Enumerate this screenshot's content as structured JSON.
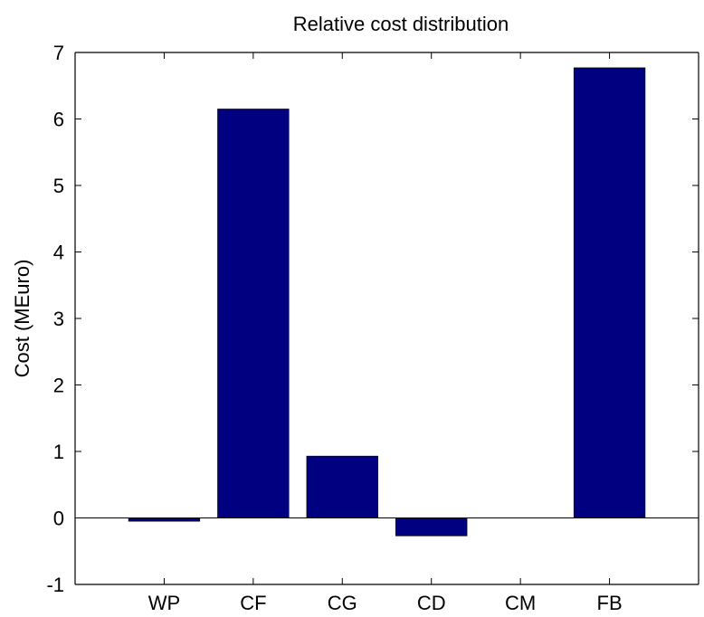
{
  "chart_data": {
    "type": "bar",
    "title": "Relative cost distribution",
    "xlabel": "",
    "ylabel": "Cost (MEuro)",
    "categories": [
      "WP",
      "CF",
      "CG",
      "CD",
      "CM",
      "FB"
    ],
    "values": [
      -0.05,
      6.15,
      0.93,
      -0.27,
      0.0,
      6.77
    ],
    "ylim": [
      -1,
      7
    ],
    "yticks": [
      -1,
      0,
      1,
      2,
      3,
      4,
      5,
      6,
      7
    ],
    "ytick_labels": [
      "-1",
      "0",
      "1",
      "2",
      "3",
      "4",
      "5",
      "6",
      "7"
    ],
    "grid": false,
    "legend": "none",
    "bar_color": "#000080"
  }
}
